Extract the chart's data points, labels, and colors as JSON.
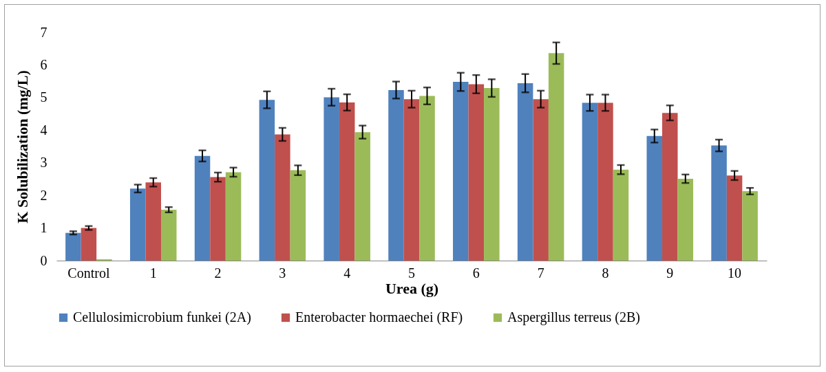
{
  "chart_data": {
    "type": "bar",
    "xlabel": "Urea (g)",
    "ylabel": "K  Solubilization (mg/L)",
    "categories": [
      "Control",
      "1",
      "2",
      "3",
      "4",
      "5",
      "6",
      "7",
      "8",
      "9",
      "10"
    ],
    "series": [
      {
        "name": "Cellulosimicrobium funkei (2A)",
        "color": "#4f81bd",
        "values": [
          0.85,
          2.21,
          3.21,
          4.93,
          5.01,
          5.23,
          5.48,
          5.44,
          4.84,
          3.82,
          3.53
        ],
        "errors": [
          0.05,
          0.12,
          0.17,
          0.26,
          0.26,
          0.26,
          0.28,
          0.28,
          0.25,
          0.2,
          0.18
        ]
      },
      {
        "name": "Enterobacter hormaechei (RF)",
        "color": "#c0504d",
        "values": [
          1.0,
          2.4,
          2.56,
          3.87,
          4.85,
          4.95,
          5.41,
          4.95,
          4.84,
          4.53,
          2.61
        ],
        "errors": [
          0.06,
          0.13,
          0.14,
          0.2,
          0.25,
          0.26,
          0.28,
          0.26,
          0.25,
          0.23,
          0.14
        ]
      },
      {
        "name": "Aspergillus terreus (2B)",
        "color": "#9bbb59",
        "values": [
          0.04,
          1.56,
          2.71,
          2.77,
          3.94,
          5.05,
          5.29,
          6.36,
          2.79,
          2.51,
          2.13
        ],
        "errors": [
          null,
          0.08,
          0.14,
          0.15,
          0.2,
          0.26,
          0.27,
          0.33,
          0.14,
          0.13,
          0.1
        ]
      }
    ],
    "ylim": [
      0,
      7
    ],
    "yticks": [
      0,
      1,
      2,
      3,
      4,
      5,
      6,
      7
    ],
    "grid": false,
    "legend": "bottom"
  }
}
